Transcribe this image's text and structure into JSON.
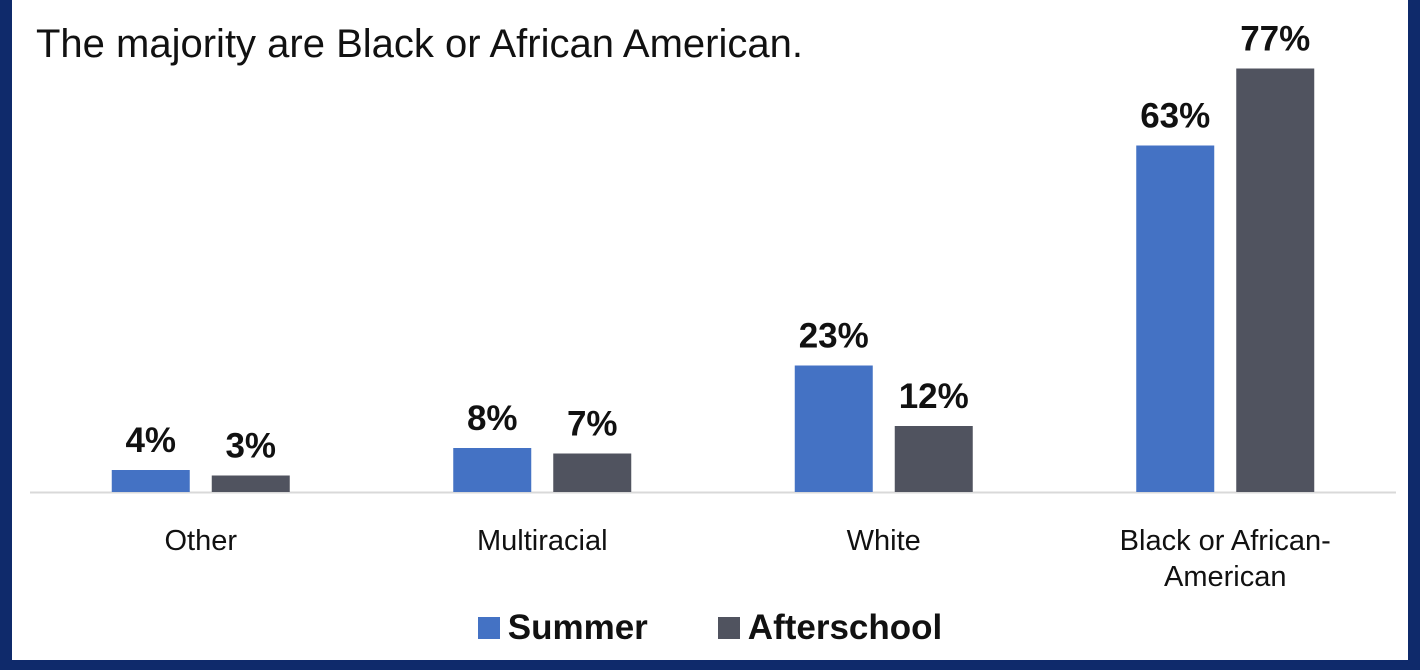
{
  "chart_data": {
    "type": "bar",
    "title": "The majority are Black or African American.",
    "categories": [
      [
        "Other"
      ],
      [
        "Multiracial"
      ],
      [
        "White"
      ],
      [
        "Black or African-",
        "American"
      ]
    ],
    "series": [
      {
        "name": "Summer",
        "values": [
          4,
          8,
          23,
          63
        ],
        "labels": [
          "4%",
          "8%",
          "23%",
          "63%"
        ],
        "color": "#4472c4"
      },
      {
        "name": "Afterschool",
        "values": [
          3,
          7,
          12,
          77
        ],
        "labels": [
          "3%",
          "7%",
          "12%",
          "77%"
        ],
        "color": "#50535f"
      }
    ],
    "xlabel": "",
    "ylabel": "",
    "ylim": [
      0,
      80
    ],
    "grid": false,
    "legend_position": "bottom"
  }
}
